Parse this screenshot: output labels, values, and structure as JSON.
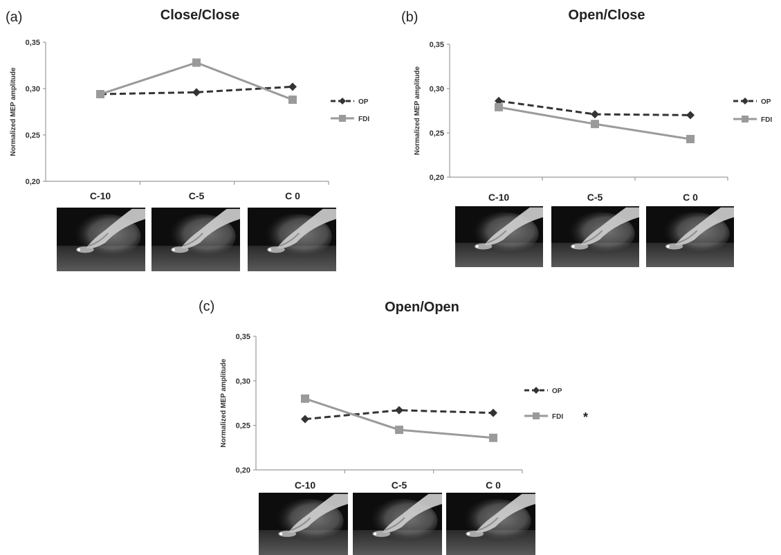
{
  "chart_data": [
    {
      "type": "line",
      "panel": "(a)",
      "title": "Close/Close",
      "ylabel": "Normalized MEP amplitude",
      "categories": [
        "C-10",
        "C-5",
        "C 0"
      ],
      "ylim": [
        0.2,
        0.35
      ],
      "yticks": [
        "0,20",
        "0,25",
        "0,30",
        "0,35"
      ],
      "series": [
        {
          "name": "OP",
          "values": [
            0.294,
            0.296,
            0.302
          ],
          "color": "#333333",
          "style": "dashed",
          "marker": "diamond"
        },
        {
          "name": "FDI",
          "values": [
            0.294,
            0.328,
            0.288
          ],
          "color": "#9a9a9a",
          "style": "solid",
          "marker": "square"
        }
      ],
      "annotation": "",
      "legend": "right",
      "thumbnails": [
        "hand-grasp-photo",
        "hand-grasp-photo",
        "hand-grasp-photo"
      ]
    },
    {
      "type": "line",
      "panel": "(b)",
      "title": "Open/Close",
      "ylabel": "Normalized MEP amplitude",
      "categories": [
        "C-10",
        "C-5",
        "C 0"
      ],
      "ylim": [
        0.2,
        0.35
      ],
      "yticks": [
        "0,20",
        "0,25",
        "0,30",
        "0,35"
      ],
      "series": [
        {
          "name": "OP",
          "values": [
            0.286,
            0.271,
            0.27
          ],
          "color": "#333333",
          "style": "dashed",
          "marker": "diamond"
        },
        {
          "name": "FDI",
          "values": [
            0.279,
            0.26,
            0.243
          ],
          "color": "#9a9a9a",
          "style": "solid",
          "marker": "square"
        }
      ],
      "annotation": "",
      "legend": "right",
      "thumbnails": [
        "hand-grasp-photo",
        "hand-grasp-photo",
        "hand-grasp-photo"
      ]
    },
    {
      "type": "line",
      "panel": "(c)",
      "title": "Open/Open",
      "ylabel": "Normalized MEP amplitude",
      "categories": [
        "C-10",
        "C-5",
        "C 0"
      ],
      "ylim": [
        0.2,
        0.35
      ],
      "yticks": [
        "0,20",
        "0,25",
        "0,30",
        "0,35"
      ],
      "series": [
        {
          "name": "OP",
          "values": [
            0.257,
            0.267,
            0.264
          ],
          "color": "#333333",
          "style": "dashed",
          "marker": "diamond"
        },
        {
          "name": "FDI",
          "values": [
            0.28,
            0.245,
            0.236
          ],
          "color": "#9a9a9a",
          "style": "solid",
          "marker": "square"
        }
      ],
      "annotation": "*",
      "legend": "right",
      "thumbnails": [
        "hand-grasp-photo",
        "hand-grasp-photo",
        "hand-grasp-photo"
      ]
    }
  ]
}
